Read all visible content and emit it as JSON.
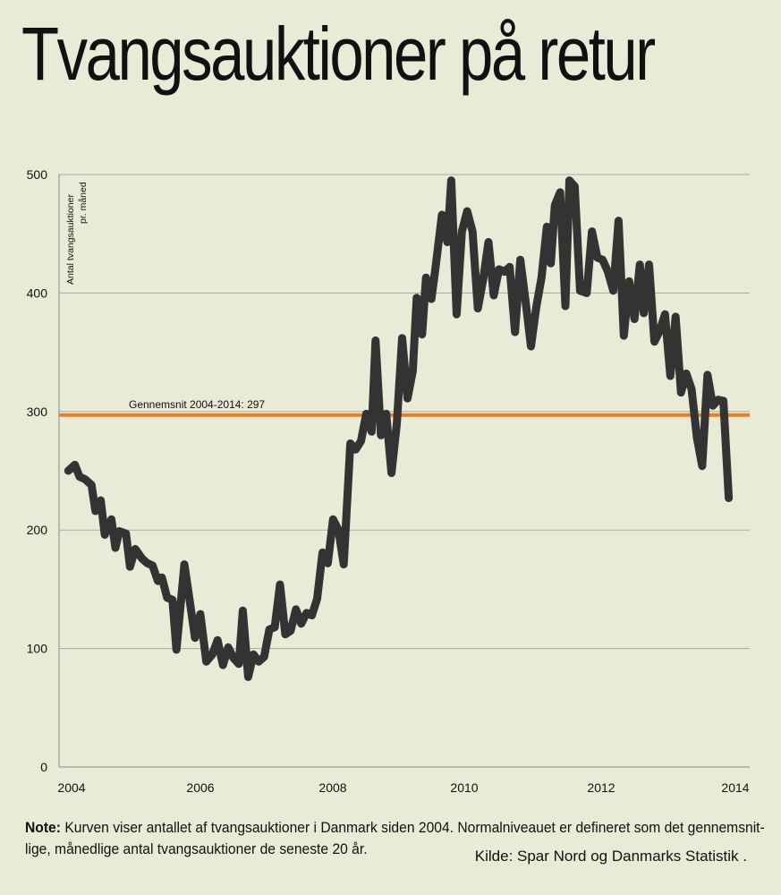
{
  "title": "Tvangsauktioner på retur",
  "note": {
    "prefix": "Note:",
    "line1": " Kurven viser antallet af tvangsauktioner i Danmark siden 2004. Normalniveauet er defineret som det gennemsnit-",
    "line2": "lige, månedlige antal tvangsauktioner de seneste 20 år.",
    "source": "Kilde: Spar Nord og Danmarks Statistik ."
  },
  "colors": {
    "background": "#e8ebd6",
    "series": "#333333",
    "average": "#ee7d1b",
    "grid": "#a9a9a9"
  },
  "chart_data": {
    "type": "line",
    "title": "Tvangsauktioner på retur",
    "ylabel_line1": "Antal tvangsauktioner",
    "ylabel_line2": "pr. måned",
    "xlabel": "",
    "ylim": [
      0,
      500
    ],
    "y_ticks": [
      0,
      100,
      200,
      300,
      400,
      500
    ],
    "x_ticks": [
      "2004",
      "2006",
      "2008",
      "2010",
      "2012",
      "2014"
    ],
    "xlim": [
      2004,
      2014.25
    ],
    "grid": true,
    "average_line": {
      "label": "Gennemsnit 2004-2014: 297",
      "value": 297
    },
    "series": [
      {
        "points": [
          [
            2003.95,
            250
          ],
          [
            2004.05,
            255
          ],
          [
            2004.12,
            245
          ],
          [
            2004.2,
            243
          ],
          [
            2004.3,
            238
          ],
          [
            2004.36,
            216
          ],
          [
            2004.44,
            225
          ],
          [
            2004.5,
            196
          ],
          [
            2004.6,
            209
          ],
          [
            2004.66,
            185
          ],
          [
            2004.72,
            199
          ],
          [
            2004.82,
            197
          ],
          [
            2004.88,
            169
          ],
          [
            2004.96,
            184
          ],
          [
            2005.06,
            176
          ],
          [
            2005.14,
            172
          ],
          [
            2005.22,
            170
          ],
          [
            2005.3,
            157
          ],
          [
            2005.36,
            160
          ],
          [
            2005.44,
            143
          ],
          [
            2005.52,
            141
          ],
          [
            2005.58,
            99
          ],
          [
            2005.7,
            171
          ],
          [
            2005.78,
            140
          ],
          [
            2005.86,
            109
          ],
          [
            2005.94,
            129
          ],
          [
            2006.03,
            89
          ],
          [
            2006.12,
            95
          ],
          [
            2006.2,
            107
          ],
          [
            2006.28,
            86
          ],
          [
            2006.36,
            101
          ],
          [
            2006.44,
            92
          ],
          [
            2006.52,
            87
          ],
          [
            2006.58,
            132
          ],
          [
            2006.66,
            76
          ],
          [
            2006.74,
            95
          ],
          [
            2006.82,
            89
          ],
          [
            2006.9,
            93
          ],
          [
            2006.98,
            116
          ],
          [
            2007.06,
            118
          ],
          [
            2007.14,
            154
          ],
          [
            2007.22,
            112
          ],
          [
            2007.3,
            115
          ],
          [
            2007.38,
            133
          ],
          [
            2007.46,
            121
          ],
          [
            2007.54,
            130
          ],
          [
            2007.62,
            128
          ],
          [
            2007.7,
            142
          ],
          [
            2007.78,
            181
          ],
          [
            2007.86,
            172
          ],
          [
            2007.94,
            209
          ],
          [
            2008.02,
            200
          ],
          [
            2008.1,
            171
          ],
          [
            2008.2,
            273
          ],
          [
            2008.28,
            268
          ],
          [
            2008.36,
            275
          ],
          [
            2008.44,
            298
          ],
          [
            2008.52,
            283
          ],
          [
            2008.58,
            360
          ],
          [
            2008.66,
            280
          ],
          [
            2008.74,
            298
          ],
          [
            2008.82,
            248
          ],
          [
            2008.9,
            290
          ],
          [
            2008.98,
            362
          ],
          [
            2009.06,
            311
          ],
          [
            2009.14,
            334
          ],
          [
            2009.2,
            396
          ],
          [
            2009.28,
            365
          ],
          [
            2009.34,
            413
          ],
          [
            2009.42,
            395
          ],
          [
            2009.48,
            420
          ],
          [
            2009.58,
            466
          ],
          [
            2009.66,
            443
          ],
          [
            2009.72,
            495
          ],
          [
            2009.8,
            382
          ],
          [
            2009.88,
            452
          ],
          [
            2009.96,
            469
          ],
          [
            2010.04,
            452
          ],
          [
            2010.12,
            387
          ],
          [
            2010.2,
            411
          ],
          [
            2010.28,
            443
          ],
          [
            2010.36,
            398
          ],
          [
            2010.44,
            420
          ],
          [
            2010.52,
            418
          ],
          [
            2010.6,
            422
          ],
          [
            2010.68,
            367
          ],
          [
            2010.76,
            428
          ],
          [
            2010.84,
            393
          ],
          [
            2010.92,
            355
          ],
          [
            2011.0,
            388
          ],
          [
            2011.08,
            413
          ],
          [
            2011.16,
            456
          ],
          [
            2011.22,
            425
          ],
          [
            2011.28,
            474
          ],
          [
            2011.36,
            485
          ],
          [
            2011.44,
            389
          ],
          [
            2011.5,
            495
          ],
          [
            2011.58,
            490
          ],
          [
            2011.66,
            402
          ],
          [
            2011.76,
            400
          ],
          [
            2011.84,
            452
          ],
          [
            2011.92,
            430
          ],
          [
            2012.0,
            428
          ],
          [
            2012.08,
            418
          ],
          [
            2012.16,
            402
          ],
          [
            2012.24,
            461
          ],
          [
            2012.32,
            364
          ],
          [
            2012.4,
            410
          ],
          [
            2012.48,
            378
          ],
          [
            2012.56,
            424
          ],
          [
            2012.62,
            383
          ],
          [
            2012.7,
            424
          ],
          [
            2012.78,
            359
          ],
          [
            2012.86,
            368
          ],
          [
            2012.94,
            382
          ],
          [
            2013.02,
            330
          ],
          [
            2013.1,
            380
          ],
          [
            2013.18,
            316
          ],
          [
            2013.26,
            332
          ],
          [
            2013.34,
            319
          ],
          [
            2013.42,
            278
          ],
          [
            2013.5,
            254
          ],
          [
            2013.58,
            331
          ],
          [
            2013.66,
            305
          ],
          [
            2013.74,
            310
          ],
          [
            2013.82,
            309
          ],
          [
            2013.9,
            227
          ]
        ]
      }
    ]
  }
}
